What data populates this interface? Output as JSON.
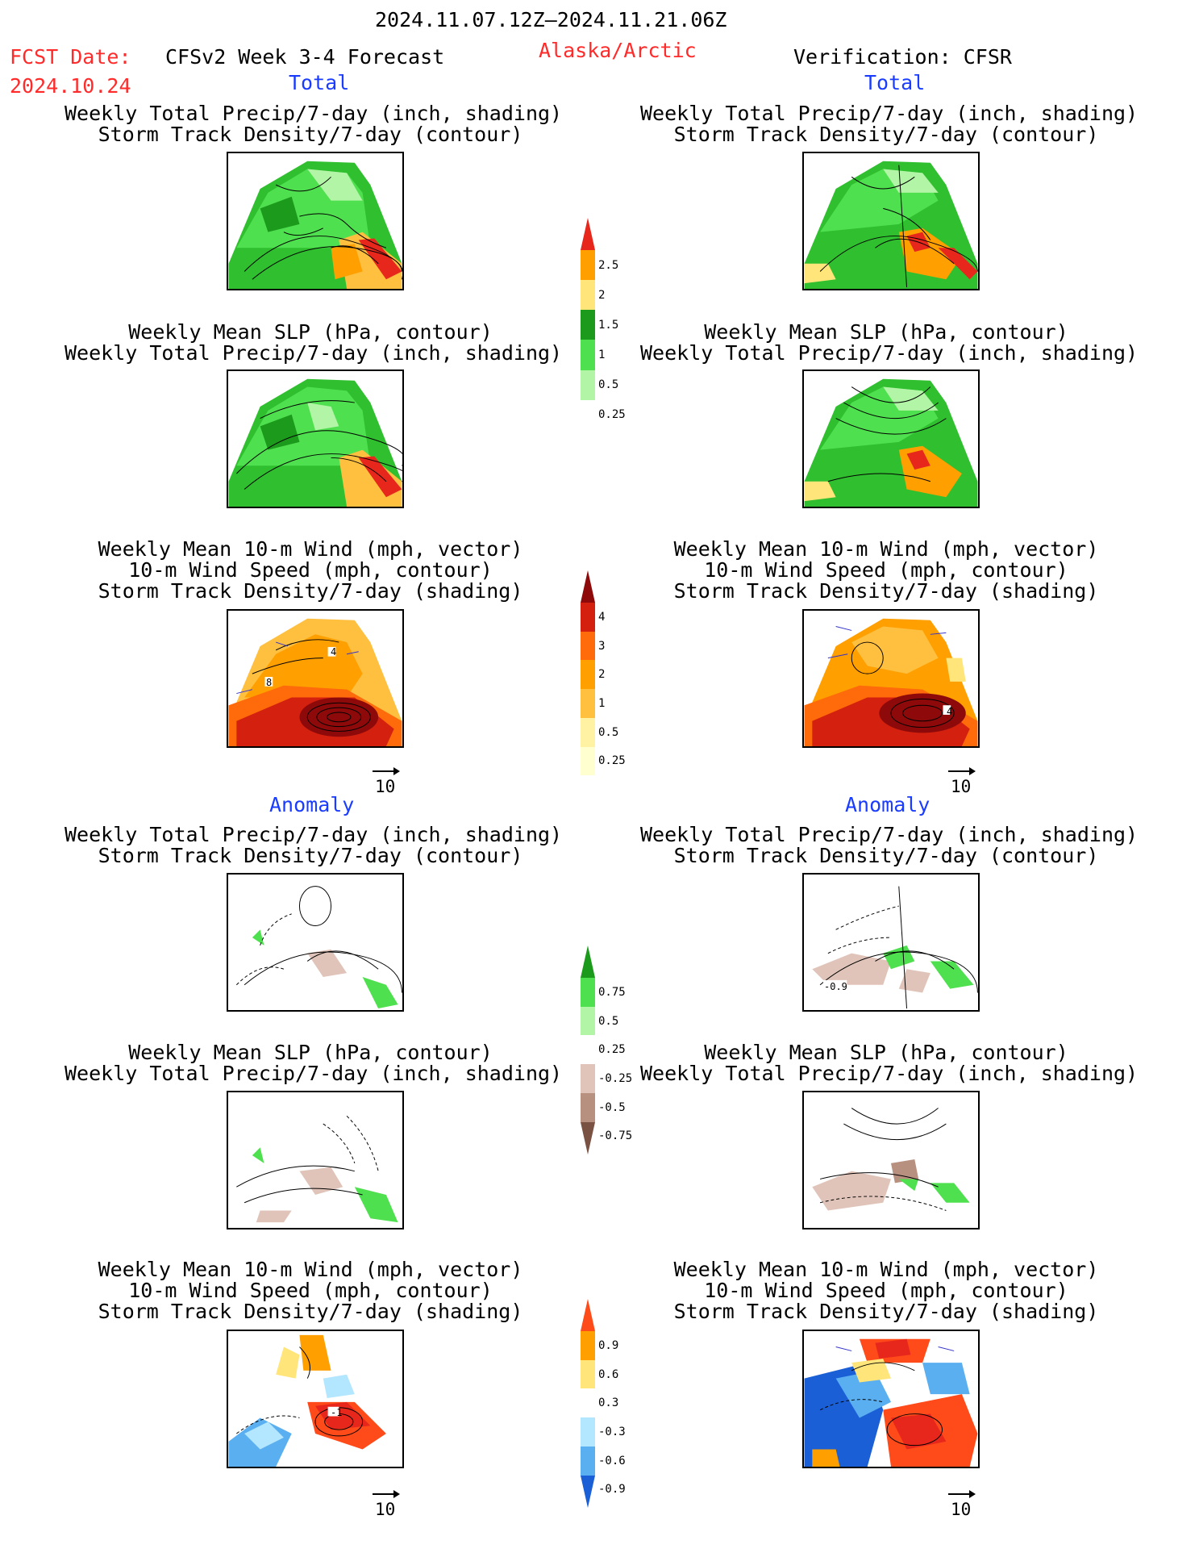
{
  "header": {
    "period": "2024.11.07.12Z–2024.11.21.06Z",
    "fcst_label": "FCST Date:",
    "fcst_date": "2024.10.24",
    "model": "CFSv2 Week 3-4 Forecast",
    "region": "Alaska/Arctic",
    "verification": "Verification: CFSR"
  },
  "sections": {
    "total_left": "Total",
    "total_right": "Total",
    "anom_left": "Anomaly",
    "anom_right": "Anomaly"
  },
  "panels": {
    "precip_storm": [
      "Weekly Total Precip/7-day (inch, shading)",
      "Storm Track Density/7-day (contour)"
    ],
    "slp_precip": [
      "Weekly Mean SLP (hPa, contour)",
      "Weekly Total Precip/7-day (inch, shading)"
    ],
    "wind_storm": [
      "Weekly Mean 10-m Wind (mph, vector)",
      "10-m Wind Speed (mph, contour)",
      "Storm Track Density/7-day (shading)"
    ]
  },
  "vector_reference": "10",
  "contour_labels": {
    "total_wind_left_a": "4",
    "total_wind_left_b": "8",
    "total_wind_right": "4",
    "anom_precip_right": "-0.9",
    "anom_wind_left": "-1"
  },
  "colorbars": {
    "precip_total": {
      "labels": [
        "2.5",
        "2",
        "1.5",
        "1",
        "0.5",
        "0.25"
      ],
      "colors": [
        "#e8271c",
        "#ff9f00",
        "#ffe57a",
        "#1c9a1c",
        "#4fe04f",
        "#b3f5a6"
      ]
    },
    "storm_total": {
      "labels": [
        "4",
        "3",
        "2",
        "1",
        "0.5",
        "0.25"
      ],
      "colors": [
        "#8e0a0a",
        "#d3200f",
        "#ff6a0a",
        "#ff9f00",
        "#ffbf3f",
        "#fff2a3",
        "#ffffd0"
      ]
    },
    "precip_anom": {
      "labels": [
        "0.75",
        "0.5",
        "0.25",
        "-0.25",
        "-0.5",
        "-0.75"
      ],
      "colors": [
        "#1c9a1c",
        "#4fe04f",
        "#b3f5a6",
        "#ffffff",
        "#e0c4b9",
        "#b89080",
        "#7a5244"
      ]
    },
    "wind_anom": {
      "labels": [
        "0.9",
        "0.6",
        "0.3",
        "-0.3",
        "-0.6",
        "-0.9"
      ],
      "colors": [
        "#ff4a1a",
        "#ff9f00",
        "#ffe57a",
        "#ffffff",
        "#b3e6ff",
        "#5aaff0",
        "#1a5fd6"
      ]
    }
  }
}
